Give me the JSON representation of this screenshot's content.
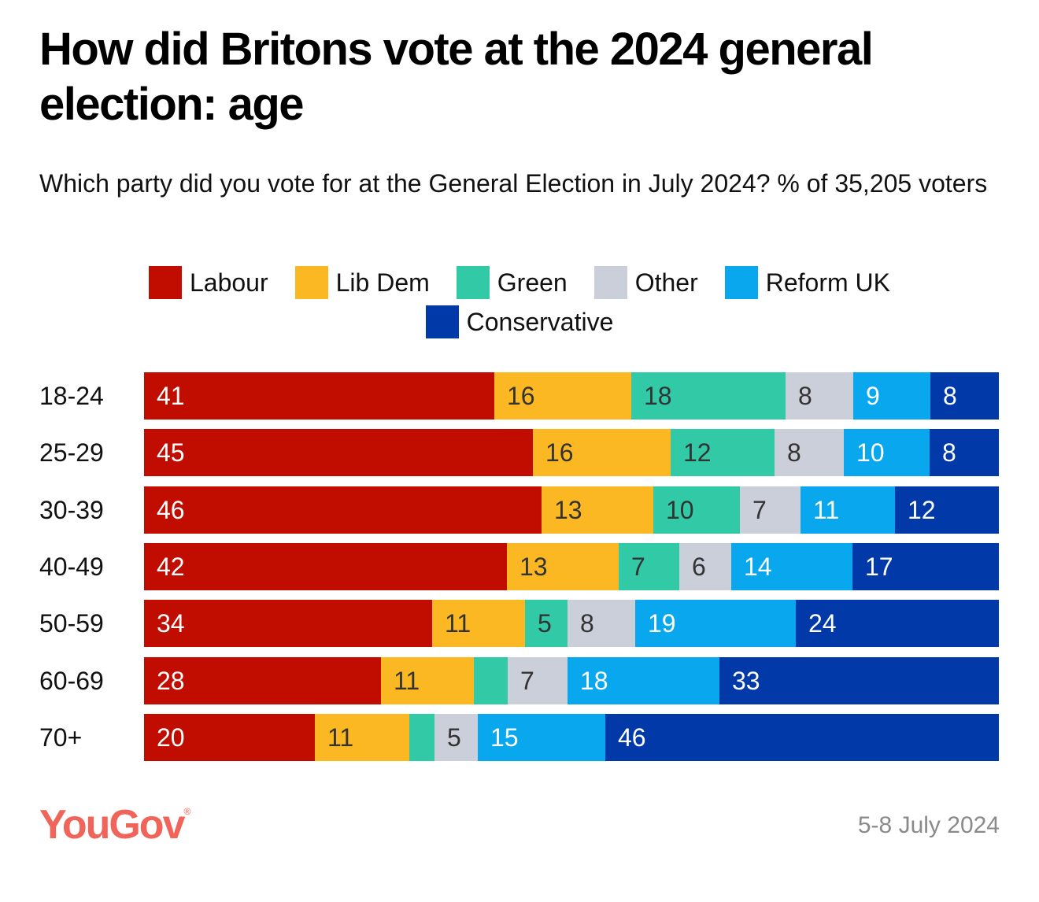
{
  "header": {
    "title": "How did Britons vote at the 2024 general election: age",
    "subtitle": "Which party did you vote for at the General Election in July 2024? % of 35,205 voters"
  },
  "footer": {
    "brand": "YouGov",
    "brand_mark": "®",
    "date": "5-8 July 2024"
  },
  "chart_data": {
    "type": "bar",
    "orientation": "horizontal",
    "stacked": true,
    "title": "How did Britons vote at the 2024 general election: age",
    "subtitle": "Which party did you vote for at the General Election in July 2024? % of 35,205 voters",
    "xlabel": "",
    "ylabel": "",
    "xlim": [
      0,
      100
    ],
    "grid": false,
    "legend_position": "top-center",
    "categories": [
      "18-24",
      "25-29",
      "30-39",
      "40-49",
      "50-59",
      "60-69",
      "70+"
    ],
    "series": [
      {
        "name": "Labour",
        "color": "#c00d00",
        "label_color": "#ffffff",
        "values": [
          41,
          45,
          46,
          42,
          34,
          28,
          20
        ],
        "labels": [
          "41",
          "45",
          "46",
          "42",
          "34",
          "28",
          "20"
        ]
      },
      {
        "name": "Lib Dem",
        "color": "#fbb822",
        "label_color": "#333333",
        "values": [
          16,
          16,
          13,
          13,
          11,
          11,
          11
        ],
        "labels": [
          "16",
          "16",
          "13",
          "13",
          "11",
          "11",
          "11"
        ]
      },
      {
        "name": "Green",
        "color": "#31c9a6",
        "label_color": "#333333",
        "values": [
          18,
          12,
          10,
          7,
          5,
          4,
          3
        ],
        "labels": [
          "18",
          "12",
          "10",
          "7",
          "5",
          "",
          ""
        ]
      },
      {
        "name": "Other",
        "color": "#cbcfd9",
        "label_color": "#333333",
        "values": [
          8,
          8,
          7,
          6,
          8,
          7,
          5
        ],
        "labels": [
          "8",
          "8",
          "7",
          "6",
          "8",
          "7",
          "5"
        ]
      },
      {
        "name": "Reform UK",
        "color": "#09a7ee",
        "label_color": "#ffffff",
        "values": [
          9,
          10,
          11,
          14,
          19,
          18,
          15
        ],
        "labels": [
          "9",
          "10",
          "11",
          "14",
          "19",
          "18",
          "15"
        ]
      },
      {
        "name": "Conservative",
        "color": "#013aa8",
        "label_color": "#ffffff",
        "values": [
          8,
          8,
          12,
          17,
          24,
          33,
          46
        ],
        "labels": [
          "8",
          "8",
          "12",
          "17",
          "24",
          "33",
          "46"
        ]
      }
    ]
  }
}
